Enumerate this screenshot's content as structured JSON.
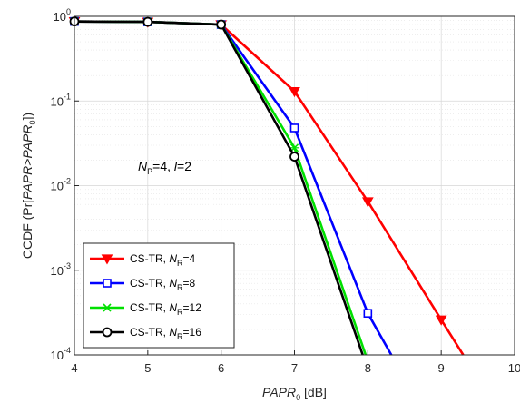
{
  "chart_data": {
    "type": "line",
    "title": "",
    "xlabel": {
      "italic": "PAPR",
      "sub": "0",
      "suffix": " [dB]"
    },
    "ylabel": {
      "prefix": "CCDF (Pr[",
      "italic1": "PAPR",
      "mid": ">",
      "italic2": "PAPR",
      "sub": "0",
      "suffix": "])"
    },
    "xlim": [
      4,
      10
    ],
    "ylim": [
      0.0001,
      1
    ],
    "yscale": "log",
    "grid": true,
    "x_ticks": [
      "4",
      "5",
      "6",
      "7",
      "8",
      "9",
      "10"
    ],
    "y_ticks": [
      {
        "base": "10",
        "exp": "0"
      },
      {
        "base": "10",
        "exp": "-1"
      },
      {
        "base": "10",
        "exp": "-2"
      },
      {
        "base": "10",
        "exp": "-3"
      },
      {
        "base": "10",
        "exp": "-4"
      }
    ],
    "annotation": {
      "sym1": "N",
      "sub1": "P",
      "eq1": "=4, ",
      "sym2": "l",
      "eq2": "=2"
    },
    "legend_position": "bottom-left",
    "series": [
      {
        "label_prefix": "CS-TR, ",
        "label_sym": "N",
        "label_sub": "R",
        "label_suffix": "=4",
        "color": "#ff0000",
        "marker": "triangle-down",
        "x": [
          4,
          5,
          6,
          7,
          8,
          9,
          9.3
        ],
        "y": [
          0.87,
          0.86,
          0.8,
          0.13,
          0.0065,
          0.00026,
          0.0001
        ]
      },
      {
        "label_prefix": "CS-TR, ",
        "label_sym": "N",
        "label_sub": "R",
        "label_suffix": "=8",
        "color": "#0000ff",
        "marker": "square",
        "x": [
          4,
          5,
          6,
          7,
          8,
          8.32
        ],
        "y": [
          0.87,
          0.86,
          0.8,
          0.048,
          0.00031,
          0.0001
        ]
      },
      {
        "label_prefix": "CS-TR, ",
        "label_sym": "N",
        "label_sub": "R",
        "label_suffix": "=12",
        "color": "#00e000",
        "marker": "x",
        "x": [
          4,
          5,
          6,
          7,
          7.97
        ],
        "y": [
          0.87,
          0.86,
          0.8,
          0.028,
          0.0001
        ]
      },
      {
        "label_prefix": "CS-TR, ",
        "label_sym": "N",
        "label_sub": "R",
        "label_suffix": "=16",
        "color": "#000000",
        "marker": "circle",
        "x": [
          4,
          5,
          6,
          7,
          7.93
        ],
        "y": [
          0.87,
          0.86,
          0.8,
          0.022,
          0.0001
        ]
      }
    ]
  }
}
